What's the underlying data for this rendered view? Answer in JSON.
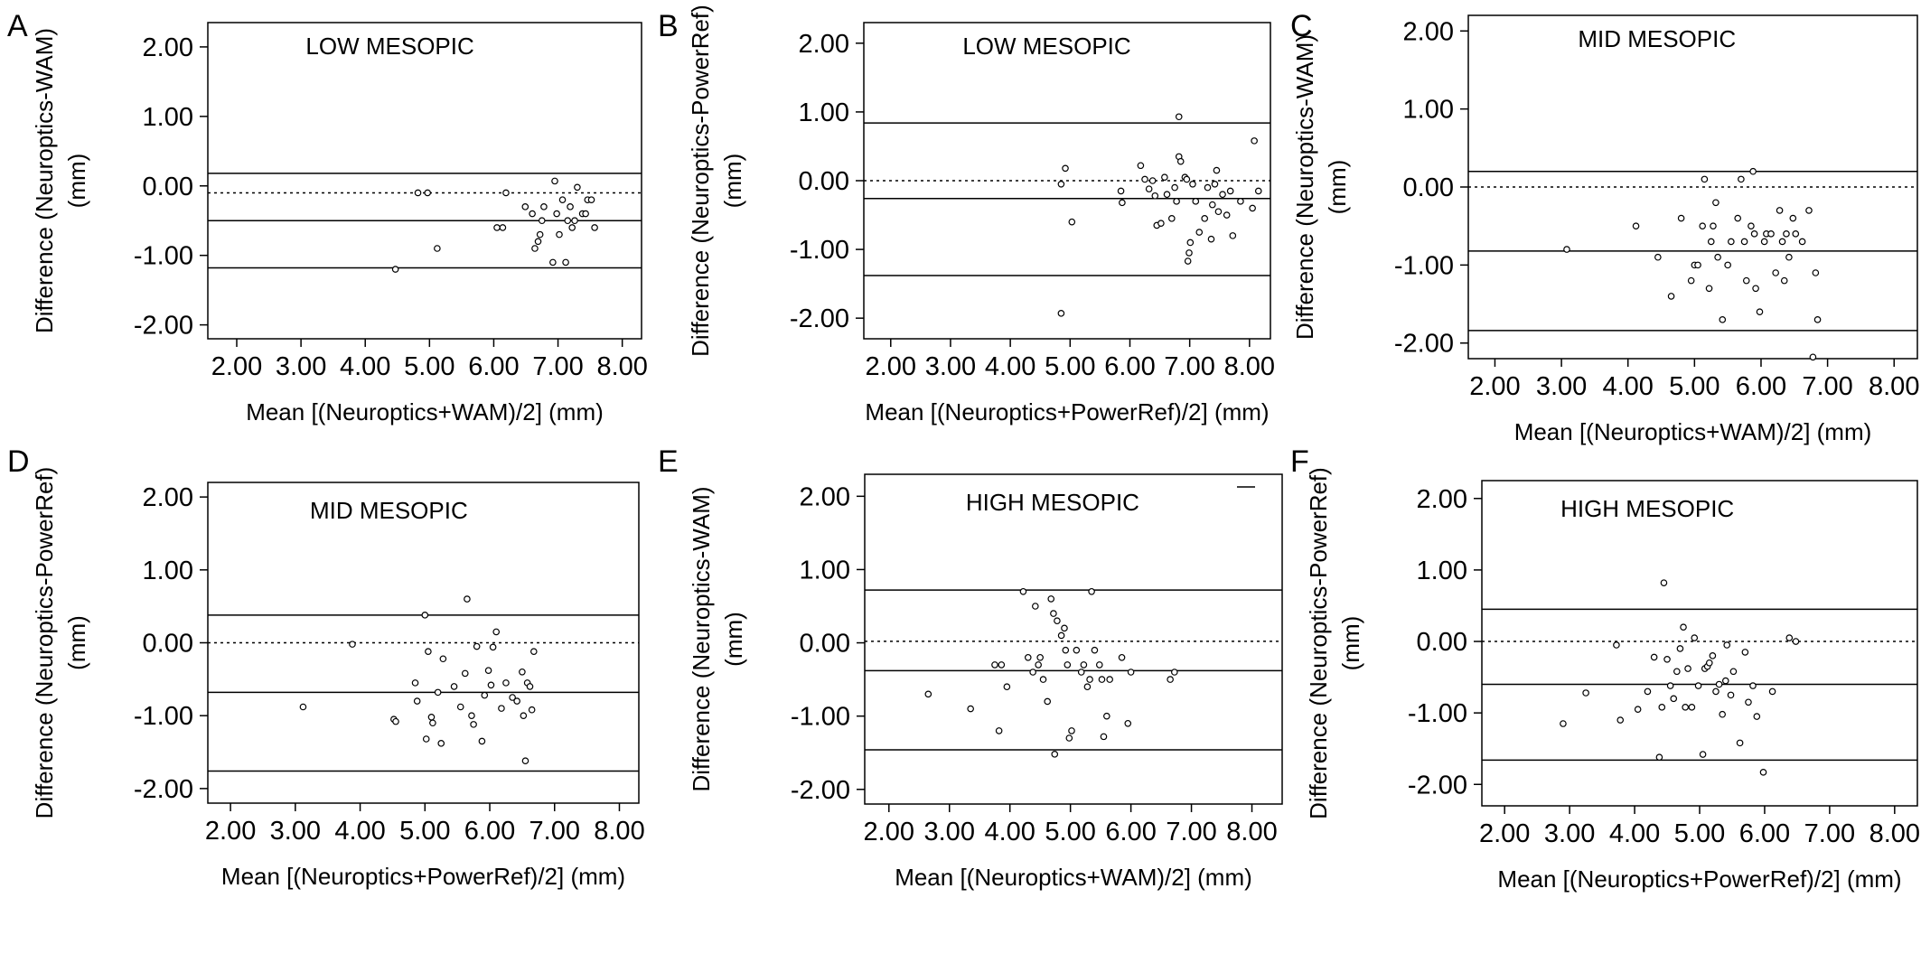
{
  "figure": {
    "title": ""
  },
  "chart_data": [
    {
      "panel": "A",
      "type": "scatter",
      "title": "LOW MESOPIC",
      "xlabel": "Mean [(Neuroptics+WAM)/2] (mm)",
      "ylabel_line1": "Difference (Neuroptics-WAM)",
      "ylabel_line2": "(mm)",
      "xticks": [
        "2.00",
        "3.00",
        "4.00",
        "5.00",
        "6.00",
        "7.00",
        "8.00"
      ],
      "yticks": [
        "2.00",
        "1.00",
        "0.00",
        "-1.00",
        "-2.00"
      ],
      "xlim": [
        1.55,
        8.3
      ],
      "ylim": [
        -2.2,
        2.35
      ],
      "lines": {
        "mean": -0.5,
        "upper_loa": 0.18,
        "lower_loa": -1.18,
        "zero": -0.1
      },
      "points": [
        [
          4.47,
          -1.2
        ],
        [
          4.82,
          -0.1
        ],
        [
          4.97,
          -0.1
        ],
        [
          5.12,
          -0.9
        ],
        [
          6.05,
          -0.6
        ],
        [
          6.14,
          -0.6
        ],
        [
          6.19,
          -0.1
        ],
        [
          6.49,
          -0.3
        ],
        [
          6.6,
          -0.4
        ],
        [
          6.64,
          -0.9
        ],
        [
          6.69,
          -0.8
        ],
        [
          6.72,
          -0.7
        ],
        [
          6.75,
          -0.5
        ],
        [
          6.78,
          -0.3
        ],
        [
          6.92,
          -1.1
        ],
        [
          6.95,
          0.07
        ],
        [
          6.98,
          -0.4
        ],
        [
          7.02,
          -0.7
        ],
        [
          7.07,
          -0.2
        ],
        [
          7.12,
          -1.1
        ],
        [
          7.15,
          -0.5
        ],
        [
          7.19,
          -0.3
        ],
        [
          7.22,
          -0.6
        ],
        [
          7.26,
          -0.5
        ],
        [
          7.3,
          -0.02
        ],
        [
          7.38,
          -0.4
        ],
        [
          7.43,
          -0.4
        ],
        [
          7.46,
          -0.2
        ],
        [
          7.52,
          -0.2
        ],
        [
          7.57,
          -0.6
        ]
      ]
    },
    {
      "panel": "B",
      "type": "scatter",
      "title": "LOW MESOPIC",
      "xlabel": "Mean [(Neuroptics+PowerRef)/2] (mm)",
      "ylabel_line1": "Difference (Neuroptics-PowerRef)",
      "ylabel_line2": "(mm)",
      "xticks": [
        "2.00",
        "3.00",
        "4.00",
        "5.00",
        "6.00",
        "7.00",
        "8.00"
      ],
      "yticks": [
        "2.00",
        "1.00",
        "0.00",
        "-1.00",
        "-2.00"
      ],
      "xlim": [
        1.55,
        8.35
      ],
      "ylim": [
        -2.3,
        2.3
      ],
      "lines": {
        "mean": -0.26,
        "upper_loa": 0.84,
        "lower_loa": -1.38,
        "zero": 0.0
      },
      "points": [
        [
          4.85,
          -0.05
        ],
        [
          4.92,
          0.18
        ],
        [
          4.85,
          -1.93
        ],
        [
          5.03,
          -0.6
        ],
        [
          5.85,
          -0.15
        ],
        [
          5.87,
          -0.32
        ],
        [
          6.18,
          0.22
        ],
        [
          6.25,
          0.02
        ],
        [
          6.32,
          -0.12
        ],
        [
          6.38,
          0.0
        ],
        [
          6.42,
          -0.22
        ],
        [
          6.45,
          -0.65
        ],
        [
          6.52,
          -0.62
        ],
        [
          6.58,
          0.05
        ],
        [
          6.62,
          -0.2
        ],
        [
          6.7,
          -0.55
        ],
        [
          6.75,
          -0.1
        ],
        [
          6.78,
          -0.3
        ],
        [
          6.82,
          0.35
        ],
        [
          6.85,
          0.28
        ],
        [
          6.82,
          0.93
        ],
        [
          6.92,
          0.05
        ],
        [
          6.95,
          0.02
        ],
        [
          6.97,
          -1.17
        ],
        [
          6.99,
          -1.05
        ],
        [
          7.01,
          -0.9
        ],
        [
          7.05,
          -0.05
        ],
        [
          7.1,
          -0.3
        ],
        [
          7.16,
          -0.75
        ],
        [
          7.25,
          -0.55
        ],
        [
          7.3,
          -0.1
        ],
        [
          7.36,
          -0.85
        ],
        [
          7.38,
          -0.35
        ],
        [
          7.42,
          -0.05
        ],
        [
          7.45,
          0.15
        ],
        [
          7.48,
          -0.45
        ],
        [
          7.55,
          -0.2
        ],
        [
          7.62,
          -0.5
        ],
        [
          7.68,
          -0.15
        ],
        [
          7.72,
          -0.8
        ],
        [
          7.85,
          -0.3
        ],
        [
          8.05,
          -0.4
        ],
        [
          8.08,
          0.58
        ],
        [
          8.15,
          -0.15
        ]
      ]
    },
    {
      "panel": "C",
      "type": "scatter",
      "title": "MID MESOPIC",
      "xlabel": "Mean [(Neuroptics+WAM)/2] (mm)",
      "ylabel_line1": "Difference (Neuroptics-WAM)",
      "ylabel_line2": "(mm)",
      "xticks": [
        "2.00",
        "3.00",
        "4.00",
        "5.00",
        "6.00",
        "7.00",
        "8.00"
      ],
      "yticks": [
        "2.00",
        "1.00",
        "0.00",
        "-1.00",
        "-2.00"
      ],
      "xlim": [
        1.6,
        8.35
      ],
      "ylim": [
        -2.2,
        2.2
      ],
      "lines": {
        "mean": -0.82,
        "upper_loa": 0.2,
        "lower_loa": -1.84,
        "zero": 0.0
      },
      "points": [
        [
          3.08,
          -0.8
        ],
        [
          4.12,
          -0.5
        ],
        [
          4.45,
          -0.9
        ],
        [
          4.65,
          -1.4
        ],
        [
          4.8,
          -0.4
        ],
        [
          4.95,
          -1.2
        ],
        [
          5.0,
          -1.0
        ],
        [
          5.05,
          -1.0
        ],
        [
          5.12,
          -0.5
        ],
        [
          5.15,
          0.1
        ],
        [
          5.22,
          -1.3
        ],
        [
          5.25,
          -0.7
        ],
        [
          5.28,
          -0.5
        ],
        [
          5.32,
          -0.2
        ],
        [
          5.35,
          -0.9
        ],
        [
          5.42,
          -1.7
        ],
        [
          5.5,
          -1.0
        ],
        [
          5.55,
          -0.7
        ],
        [
          5.65,
          -0.4
        ],
        [
          5.7,
          0.1
        ],
        [
          5.75,
          -0.7
        ],
        [
          5.78,
          -1.2
        ],
        [
          5.85,
          -0.5
        ],
        [
          5.88,
          0.2
        ],
        [
          5.9,
          -0.6
        ],
        [
          5.92,
          -1.3
        ],
        [
          5.98,
          -1.6
        ],
        [
          6.05,
          -0.7
        ],
        [
          6.08,
          -0.6
        ],
        [
          6.15,
          -0.6
        ],
        [
          6.22,
          -1.1
        ],
        [
          6.28,
          -0.3
        ],
        [
          6.32,
          -0.7
        ],
        [
          6.35,
          -1.2
        ],
        [
          6.38,
          -0.6
        ],
        [
          6.42,
          -0.9
        ],
        [
          6.48,
          -0.4
        ],
        [
          6.52,
          -0.6
        ],
        [
          6.62,
          -0.7
        ],
        [
          6.72,
          -0.3
        ],
        [
          6.78,
          -2.18
        ],
        [
          6.82,
          -1.1
        ],
        [
          6.85,
          -1.7
        ]
      ]
    },
    {
      "panel": "D",
      "type": "scatter",
      "title": "MID MESOPIC",
      "xlabel": "Mean [(Neuroptics+PowerRef)/2] (mm)",
      "ylabel_line1": "Difference (Neuroptics-PowerRef)",
      "ylabel_line2": "(mm)",
      "xticks": [
        "2.00",
        "3.00",
        "4.00",
        "5.00",
        "6.00",
        "7.00",
        "8.00"
      ],
      "yticks": [
        "2.00",
        "1.00",
        "0.00",
        "-1.00",
        "-2.00"
      ],
      "xlim": [
        1.65,
        8.3
      ],
      "ylim": [
        -2.2,
        2.2
      ],
      "lines": {
        "mean": -0.68,
        "upper_loa": 0.38,
        "lower_loa": -1.76,
        "zero": 0.0
      },
      "points": [
        [
          3.12,
          -0.88
        ],
        [
          3.88,
          -0.02
        ],
        [
          4.52,
          -1.05
        ],
        [
          4.55,
          -1.08
        ],
        [
          4.85,
          -0.55
        ],
        [
          4.88,
          -0.8
        ],
        [
          5.0,
          0.38
        ],
        [
          5.02,
          -1.32
        ],
        [
          5.05,
          -0.12
        ],
        [
          5.1,
          -1.02
        ],
        [
          5.12,
          -1.1
        ],
        [
          5.2,
          -0.68
        ],
        [
          5.25,
          -1.38
        ],
        [
          5.28,
          -0.22
        ],
        [
          5.45,
          -0.6
        ],
        [
          5.55,
          -0.88
        ],
        [
          5.62,
          -0.42
        ],
        [
          5.65,
          0.6
        ],
        [
          5.72,
          -1.0
        ],
        [
          5.75,
          -1.12
        ],
        [
          5.8,
          -0.05
        ],
        [
          5.88,
          -1.35
        ],
        [
          5.92,
          -0.72
        ],
        [
          5.98,
          -0.38
        ],
        [
          6.02,
          -0.58
        ],
        [
          6.05,
          -0.06
        ],
        [
          6.1,
          0.15
        ],
        [
          6.18,
          -0.9
        ],
        [
          6.25,
          -0.55
        ],
        [
          6.35,
          -0.75
        ],
        [
          6.42,
          -0.8
        ],
        [
          6.5,
          -0.4
        ],
        [
          6.52,
          -1.0
        ],
        [
          6.55,
          -1.62
        ],
        [
          6.58,
          -0.55
        ],
        [
          6.62,
          -0.6
        ],
        [
          6.65,
          -0.92
        ],
        [
          6.68,
          -0.12
        ]
      ]
    },
    {
      "panel": "E",
      "type": "scatter",
      "title": "HIGH MESOPIC",
      "xlabel": "Mean [(Neuroptics+WAM)/2] (mm)",
      "ylabel_line1": "Difference (Neuroptics-WAM)",
      "ylabel_line2": "(mm)",
      "xticks": [
        "2.00",
        "3.00",
        "4.00",
        "5.00",
        "6.00",
        "7.00",
        "8.00"
      ],
      "yticks": [
        "2.00",
        "1.00",
        "0.00",
        "-1.00",
        "-2.00"
      ],
      "xlim": [
        1.6,
        8.5
      ],
      "ylim": [
        -2.2,
        2.3
      ],
      "lines": {
        "mean": -0.38,
        "upper_loa": 0.72,
        "lower_loa": -1.46,
        "zero": 0.02
      },
      "points": [
        [
          2.65,
          -0.7
        ],
        [
          3.35,
          -0.9
        ],
        [
          3.75,
          -0.3
        ],
        [
          3.82,
          -1.2
        ],
        [
          3.86,
          -0.3
        ],
        [
          3.95,
          -0.6
        ],
        [
          4.22,
          0.7
        ],
        [
          4.3,
          -0.2
        ],
        [
          4.38,
          -0.4
        ],
        [
          4.42,
          0.5
        ],
        [
          4.47,
          -0.3
        ],
        [
          4.5,
          -0.2
        ],
        [
          4.55,
          -0.5
        ],
        [
          4.62,
          -0.8
        ],
        [
          4.68,
          0.6
        ],
        [
          4.72,
          0.4
        ],
        [
          4.74,
          -1.52
        ],
        [
          4.78,
          0.3
        ],
        [
          4.85,
          0.1
        ],
        [
          4.9,
          0.2
        ],
        [
          4.92,
          -0.1
        ],
        [
          4.95,
          -0.3
        ],
        [
          4.98,
          -1.3
        ],
        [
          5.02,
          -1.2
        ],
        [
          5.1,
          -0.1
        ],
        [
          5.18,
          -0.4
        ],
        [
          5.22,
          -0.3
        ],
        [
          5.28,
          -0.6
        ],
        [
          5.32,
          -0.5
        ],
        [
          5.35,
          0.7
        ],
        [
          5.4,
          -0.1
        ],
        [
          5.48,
          -0.3
        ],
        [
          5.52,
          -0.5
        ],
        [
          5.55,
          -1.28
        ],
        [
          5.6,
          -1.0
        ],
        [
          5.65,
          -0.5
        ],
        [
          5.85,
          -0.2
        ],
        [
          5.95,
          -1.1
        ],
        [
          6.0,
          -0.4
        ],
        [
          6.65,
          -0.5
        ],
        [
          6.72,
          -0.4
        ]
      ]
    },
    {
      "panel": "F",
      "type": "scatter",
      "title": "HIGH MESOPIC",
      "xlabel": "Mean [(Neuroptics+PowerRef)/2] (mm)",
      "ylabel_line1": "Difference (Neuroptics-PowerRef)",
      "ylabel_line2": "(mm)",
      "xticks": [
        "2.00",
        "3.00",
        "4.00",
        "5.00",
        "6.00",
        "7.00",
        "8.00"
      ],
      "yticks": [
        "2.00",
        "1.00",
        "0.00",
        "-1.00",
        "-2.00"
      ],
      "xlim": [
        1.65,
        8.35
      ],
      "ylim": [
        -2.3,
        2.25
      ],
      "lines": {
        "mean": -0.6,
        "upper_loa": 0.45,
        "lower_loa": -1.66,
        "zero": 0.0
      },
      "points": [
        [
          2.9,
          -1.15
        ],
        [
          3.25,
          -0.72
        ],
        [
          3.72,
          -0.05
        ],
        [
          3.78,
          -1.1
        ],
        [
          4.05,
          -0.95
        ],
        [
          4.2,
          -0.7
        ],
        [
          4.3,
          -0.22
        ],
        [
          4.38,
          -1.62
        ],
        [
          4.42,
          -0.92
        ],
        [
          4.45,
          0.82
        ],
        [
          4.5,
          -0.25
        ],
        [
          4.55,
          -0.62
        ],
        [
          4.6,
          -0.8
        ],
        [
          4.65,
          -0.42
        ],
        [
          4.7,
          -0.1
        ],
        [
          4.75,
          0.2
        ],
        [
          4.78,
          -0.92
        ],
        [
          4.82,
          -0.38
        ],
        [
          4.88,
          -0.92
        ],
        [
          4.92,
          0.05
        ],
        [
          4.98,
          -0.62
        ],
        [
          5.05,
          -1.58
        ],
        [
          5.08,
          -0.38
        ],
        [
          5.12,
          -0.35
        ],
        [
          5.15,
          -0.3
        ],
        [
          5.2,
          -0.2
        ],
        [
          5.25,
          -0.7
        ],
        [
          5.3,
          -0.6
        ],
        [
          5.35,
          -1.02
        ],
        [
          5.4,
          -0.55
        ],
        [
          5.42,
          -0.05
        ],
        [
          5.48,
          -0.75
        ],
        [
          5.52,
          -0.42
        ],
        [
          5.62,
          -1.42
        ],
        [
          5.7,
          -0.15
        ],
        [
          5.75,
          -0.85
        ],
        [
          5.82,
          -0.62
        ],
        [
          5.88,
          -1.05
        ],
        [
          5.98,
          -1.83
        ],
        [
          6.12,
          -0.7
        ],
        [
          6.38,
          0.05
        ],
        [
          6.48,
          0.0
        ]
      ]
    }
  ]
}
